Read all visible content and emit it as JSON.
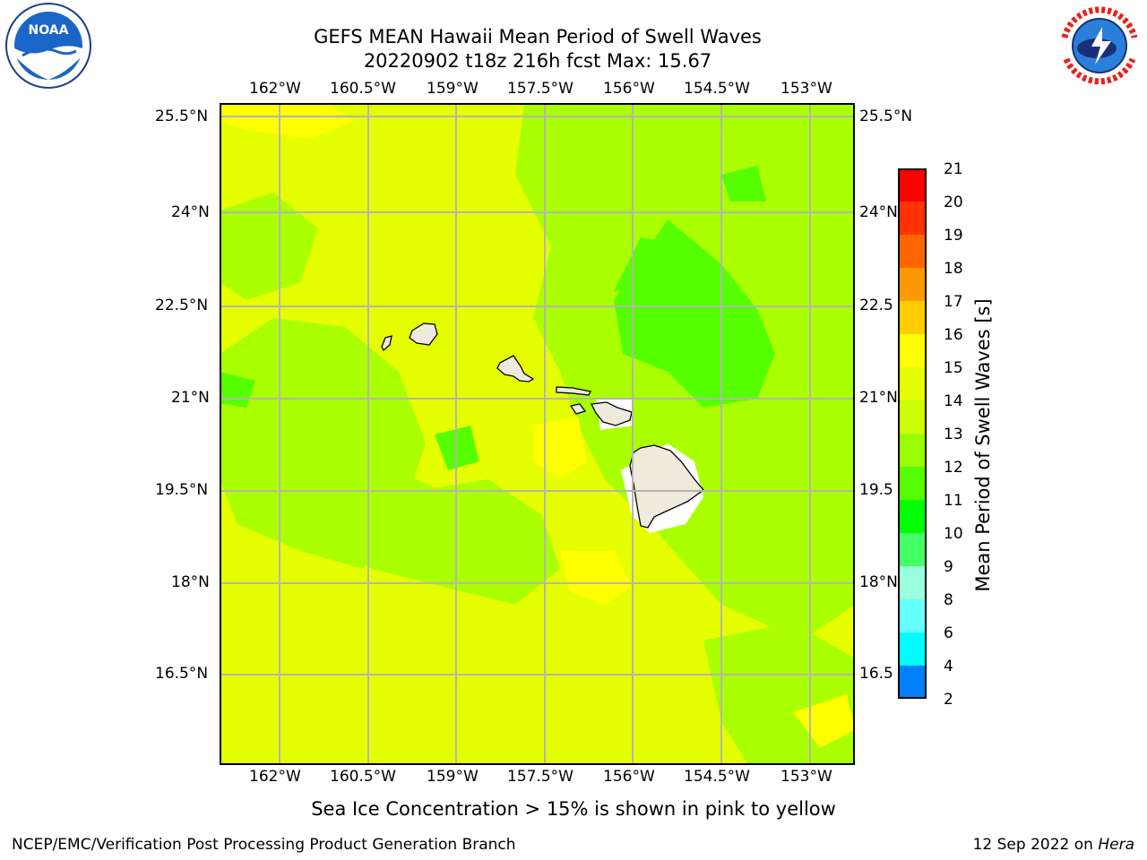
{
  "title": {
    "line1": "GEFS MEAN Hawaii Mean Period of Swell Waves",
    "line2": "20220902 t18z 216h fcst   Max: 15.67"
  },
  "map": {
    "lon_ticks": [
      "162°W",
      "160.5°W",
      "159°W",
      "157.5°W",
      "156°W",
      "154.5°W",
      "153°W"
    ],
    "lat_ticks_left": [
      "25.5°N",
      "24°N",
      "22.5°N",
      "21°N",
      "19.5°N",
      "18°N",
      "16.5°N"
    ],
    "lat_ticks_right": [
      "25.5°N",
      "24°N",
      "22.5",
      "21°N",
      "19.5",
      "18°N",
      "16.5"
    ],
    "gridlines": true,
    "field_colors": {
      "yellow": "#ffff00",
      "yellow_green": "#e6ff00",
      "lime": "#aaff00",
      "green": "#55ff00",
      "bright_green": "#22ee00",
      "land": "#eeeadc"
    },
    "icons": [
      "noaa-logo",
      "nws-logo"
    ]
  },
  "colorbar": {
    "label": "Mean Period of Swell Waves [s]",
    "ticks": [
      "21",
      "20",
      "19",
      "18",
      "17",
      "16",
      "15",
      "14",
      "13",
      "12",
      "11",
      "10",
      "9",
      "8",
      "6",
      "4",
      "2"
    ],
    "colors": [
      "#ff0000",
      "#ff3300",
      "#ff6600",
      "#ff9900",
      "#ffcc00",
      "#ffff00",
      "#e6ff00",
      "#ccff00",
      "#99ff00",
      "#55ff00",
      "#00ff00",
      "#44ff66",
      "#99ffdd",
      "#66ffff",
      "#00ffff",
      "#0080ff",
      "#0000ff"
    ]
  },
  "footer": {
    "caption": "Sea Ice Concentration > 15% is shown in pink to yellow",
    "left": "NCEP/EMC/Verification Post Processing Product Generation Branch",
    "date": "12 Sep 2022 on",
    "host": "Hera"
  }
}
